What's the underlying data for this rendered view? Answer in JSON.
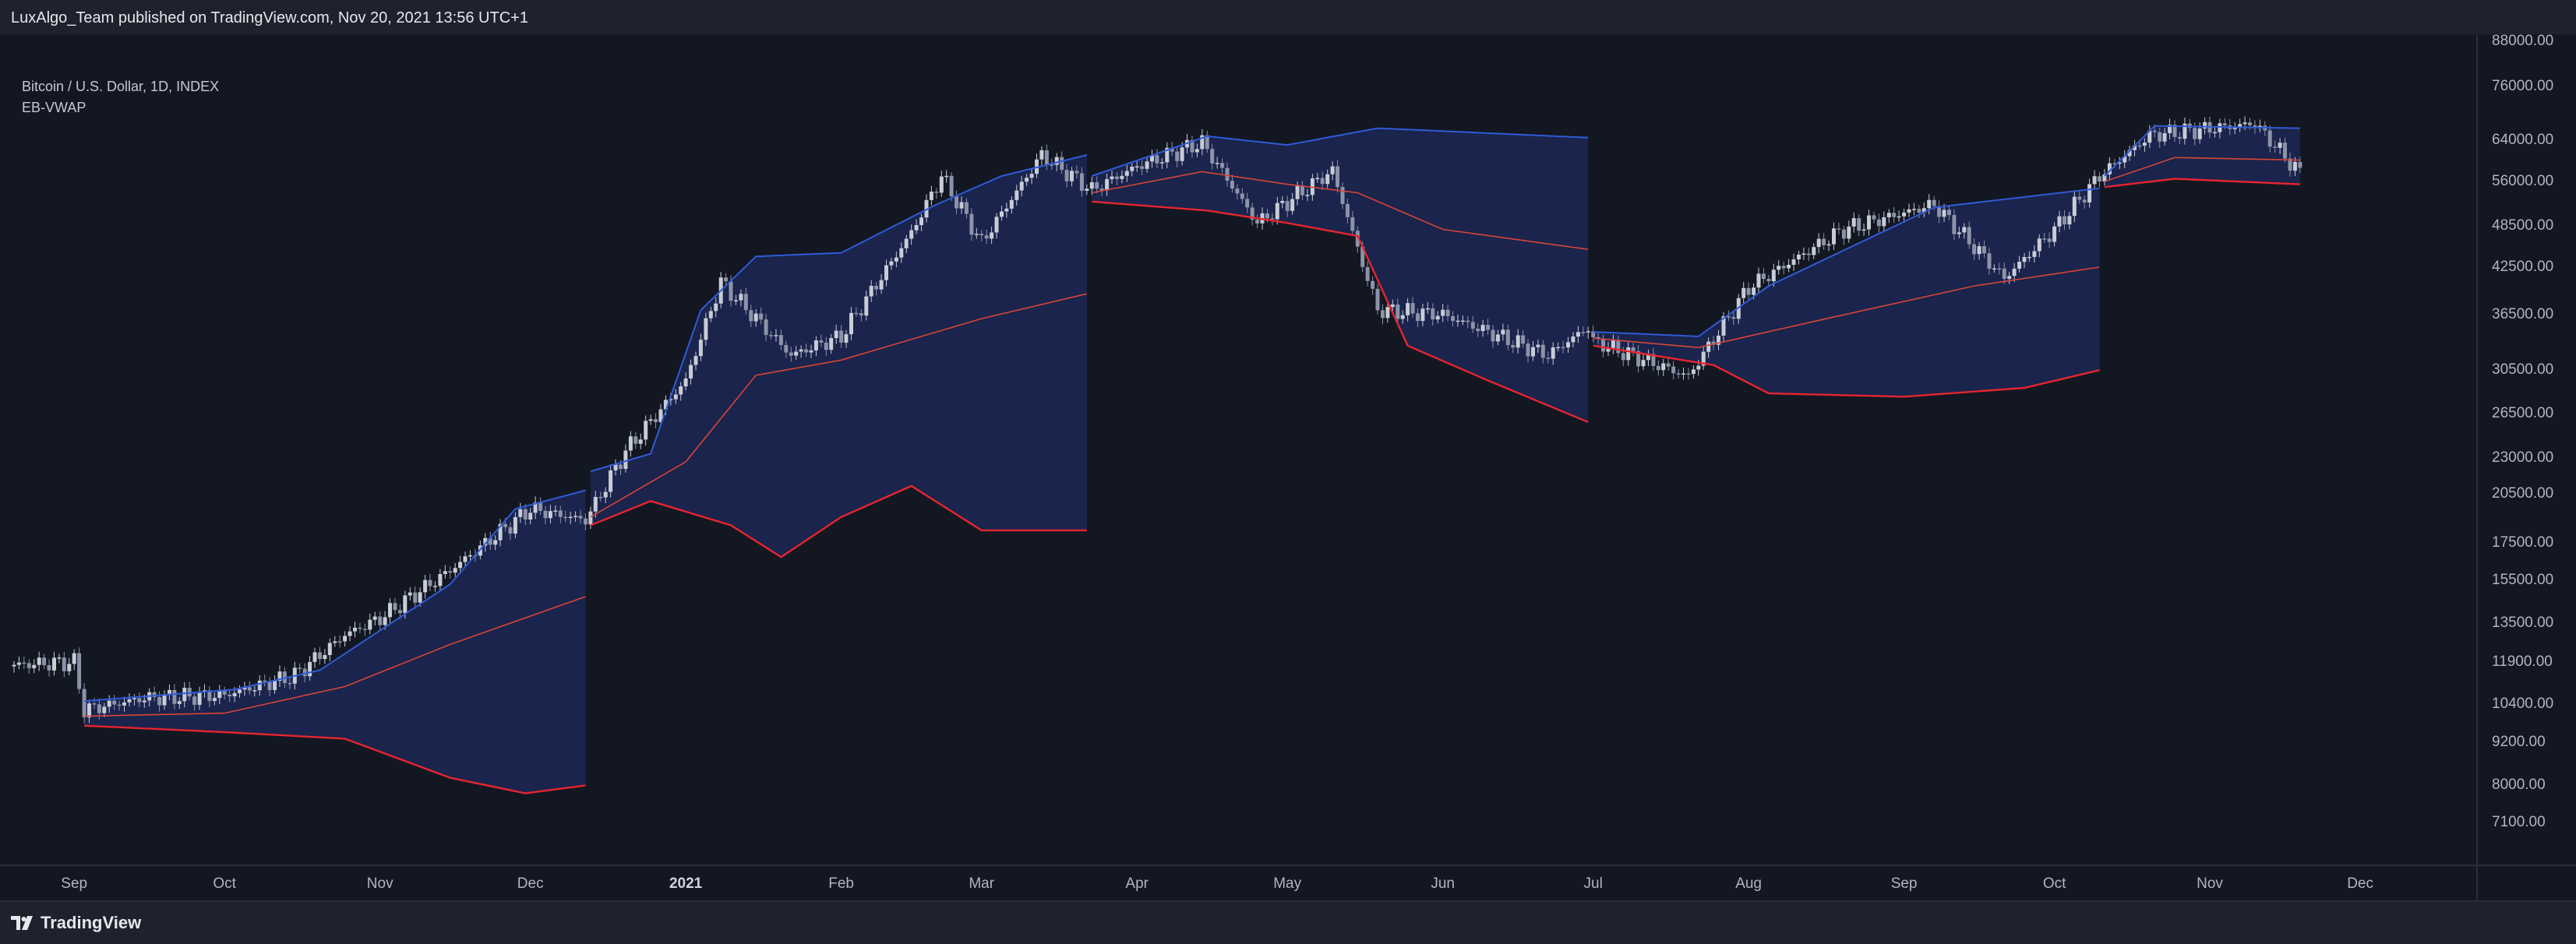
{
  "header": {
    "publish_text": "LuxAlgo_Team published on TradingView.com, Nov 20, 2021 13:56 UTC+1"
  },
  "legend": {
    "symbol": "Bitcoin / U.S. Dollar, 1D, INDEX",
    "indicator": "EB-VWAP"
  },
  "footer": {
    "brand": "TradingView",
    "logo_icon": "tradingview-logo-icon"
  },
  "colors": {
    "background": "#131722",
    "band_fill": "#1b2650",
    "upper_band": "#2f5bd6",
    "lower_band": "#e5252f",
    "vwap": "#d84438",
    "candle_up": "#c8ccd6",
    "candle_down": "#8c93a8"
  },
  "chart_data": {
    "type": "line",
    "title": "Bitcoin / U.S. Dollar, 1D, INDEX",
    "xlabel": "",
    "ylabel": "",
    "y_scale": "log",
    "ylim": [
      6200,
      90000
    ],
    "y_ticks": [
      "88000.00",
      "76000.00",
      "64000.00",
      "56000.00",
      "48500.00",
      "42500.00",
      "36500.00",
      "30500.00",
      "26500.00",
      "23000.00",
      "20500.00",
      "17500.00",
      "15500.00",
      "13500.00",
      "11900.00",
      "10400.00",
      "9200.00",
      "8000.00",
      "7100.00"
    ],
    "x_ticks": [
      {
        "label": "Sep",
        "date": "2020-09-01",
        "bold": false
      },
      {
        "label": "Oct",
        "date": "2020-10-01",
        "bold": false
      },
      {
        "label": "Nov",
        "date": "2020-11-01",
        "bold": false
      },
      {
        "label": "Dec",
        "date": "2020-12-01",
        "bold": false
      },
      {
        "label": "2021",
        "date": "2021-01-01",
        "bold": true
      },
      {
        "label": "Feb",
        "date": "2021-02-01",
        "bold": false
      },
      {
        "label": "Mar",
        "date": "2021-03-01",
        "bold": false
      },
      {
        "label": "Apr",
        "date": "2021-04-01",
        "bold": false
      },
      {
        "label": "May",
        "date": "2021-05-01",
        "bold": false
      },
      {
        "label": "Jun",
        "date": "2021-06-01",
        "bold": false
      },
      {
        "label": "Jul",
        "date": "2021-07-01",
        "bold": false
      },
      {
        "label": "Aug",
        "date": "2021-08-01",
        "bold": false
      },
      {
        "label": "Sep",
        "date": "2021-09-01",
        "bold": false
      },
      {
        "label": "Oct",
        "date": "2021-10-01",
        "bold": false
      },
      {
        "label": "Nov",
        "date": "2021-11-01",
        "bold": false
      },
      {
        "label": "Dec",
        "date": "2021-12-01",
        "bold": false
      }
    ],
    "price": [
      {
        "date": "2020-08-20",
        "close": 11800
      },
      {
        "date": "2020-09-01",
        "close": 11900
      },
      {
        "date": "2020-09-03",
        "close": 10200
      },
      {
        "date": "2020-09-15",
        "close": 10600
      },
      {
        "date": "2020-10-01",
        "close": 10700
      },
      {
        "date": "2020-10-15",
        "close": 11400
      },
      {
        "date": "2020-10-25",
        "close": 13000
      },
      {
        "date": "2020-11-01",
        "close": 13700
      },
      {
        "date": "2020-11-15",
        "close": 16000
      },
      {
        "date": "2020-12-01",
        "close": 19500
      },
      {
        "date": "2020-12-12",
        "close": 18800
      },
      {
        "date": "2020-12-20",
        "close": 23500
      },
      {
        "date": "2021-01-01",
        "close": 29500
      },
      {
        "date": "2021-01-08",
        "close": 40500
      },
      {
        "date": "2021-01-22",
        "close": 32000
      },
      {
        "date": "2021-02-01",
        "close": 34000
      },
      {
        "date": "2021-02-15",
        "close": 47500
      },
      {
        "date": "2021-02-21",
        "close": 57000
      },
      {
        "date": "2021-03-01",
        "close": 46000
      },
      {
        "date": "2021-03-13",
        "close": 61000
      },
      {
        "date": "2021-03-23",
        "close": 54500
      },
      {
        "date": "2021-04-01",
        "close": 58800
      },
      {
        "date": "2021-04-14",
        "close": 63500
      },
      {
        "date": "2021-04-25",
        "close": 49000
      },
      {
        "date": "2021-05-10",
        "close": 58000
      },
      {
        "date": "2021-05-19",
        "close": 37000
      },
      {
        "date": "2021-06-01",
        "close": 36500
      },
      {
        "date": "2021-06-22",
        "close": 32000
      },
      {
        "date": "2021-06-30",
        "close": 35000
      },
      {
        "date": "2021-07-01",
        "close": 33500
      },
      {
        "date": "2021-07-20",
        "close": 29900
      },
      {
        "date": "2021-08-01",
        "close": 39800
      },
      {
        "date": "2021-08-20",
        "close": 48000
      },
      {
        "date": "2021-09-07",
        "close": 52000
      },
      {
        "date": "2021-09-21",
        "close": 41000
      },
      {
        "date": "2021-10-01",
        "close": 48000
      },
      {
        "date": "2021-10-10",
        "close": 57000
      },
      {
        "date": "2021-10-20",
        "close": 65000
      },
      {
        "date": "2021-11-10",
        "close": 67500
      },
      {
        "date": "2021-11-19",
        "close": 57500
      }
    ],
    "series": [
      {
        "name": "upper",
        "segments": [
          [
            [
              "2020-09-03",
              10500
            ],
            [
              "2020-10-03",
              10900
            ],
            [
              "2020-10-20",
              11600
            ],
            [
              "2020-11-15",
              15300
            ],
            [
              "2020-11-28",
              19500
            ],
            [
              "2020-12-12",
              20700
            ]
          ],
          [
            [
              "2020-12-13",
              22000
            ],
            [
              "2020-12-25",
              23300
            ],
            [
              "2021-01-04",
              37000
            ],
            [
              "2021-01-15",
              44000
            ],
            [
              "2021-02-01",
              44500
            ],
            [
              "2021-02-20",
              52000
            ],
            [
              "2021-03-05",
              57000
            ],
            [
              "2021-03-22",
              61000
            ]
          ],
          [
            [
              "2021-03-23",
              57000
            ],
            [
              "2021-04-15",
              64800
            ],
            [
              "2021-05-01",
              63000
            ],
            [
              "2021-05-19",
              66500
            ],
            [
              "2021-06-30",
              64500
            ]
          ],
          [
            [
              "2021-07-01",
              34500
            ],
            [
              "2021-07-22",
              34000
            ],
            [
              "2021-08-05",
              40000
            ],
            [
              "2021-09-07",
              51500
            ],
            [
              "2021-10-10",
              54800
            ]
          ],
          [
            [
              "2021-10-11",
              57000
            ],
            [
              "2021-10-21",
              67000
            ],
            [
              "2021-11-19",
              66500
            ]
          ]
        ]
      },
      {
        "name": "vwap",
        "segments": [
          [
            [
              "2020-09-03",
              10000
            ],
            [
              "2020-10-01",
              10100
            ],
            [
              "2020-10-25",
              11000
            ],
            [
              "2020-11-15",
              12600
            ],
            [
              "2020-12-12",
              14700
            ]
          ],
          [
            [
              "2020-12-13",
              19000
            ],
            [
              "2021-01-01",
              22700
            ],
            [
              "2021-01-15",
              30000
            ],
            [
              "2021-02-01",
              31500
            ],
            [
              "2021-03-01",
              36000
            ],
            [
              "2021-03-22",
              39000
            ]
          ],
          [
            [
              "2021-03-23",
              54000
            ],
            [
              "2021-04-14",
              57800
            ],
            [
              "2021-05-01",
              55500
            ],
            [
              "2021-05-15",
              54000
            ],
            [
              "2021-06-01",
              48000
            ],
            [
              "2021-06-30",
              45000
            ]
          ],
          [
            [
              "2021-07-01",
              33800
            ],
            [
              "2021-07-22",
              32800
            ],
            [
              "2021-08-15",
              35800
            ],
            [
              "2021-09-15",
              40000
            ],
            [
              "2021-10-10",
              42500
            ]
          ],
          [
            [
              "2021-10-11",
              56000
            ],
            [
              "2021-10-25",
              60500
            ],
            [
              "2021-11-19",
              60000
            ]
          ]
        ]
      },
      {
        "name": "lower",
        "segments": [
          [
            [
              "2020-09-03",
              9700
            ],
            [
              "2020-10-01",
              9500
            ],
            [
              "2020-10-25",
              9300
            ],
            [
              "2020-11-15",
              8200
            ],
            [
              "2020-11-30",
              7800
            ],
            [
              "2020-12-12",
              8000
            ]
          ],
          [
            [
              "2020-12-13",
              18500
            ],
            [
              "2020-12-25",
              20000
            ],
            [
              "2021-01-10",
              18500
            ],
            [
              "2021-01-20",
              16700
            ],
            [
              "2021-02-01",
              19000
            ],
            [
              "2021-02-15",
              21000
            ],
            [
              "2021-03-01",
              18200
            ],
            [
              "2021-03-22",
              18200
            ]
          ],
          [
            [
              "2021-03-23",
              52500
            ],
            [
              "2021-04-15",
              51000
            ],
            [
              "2021-05-01",
              49000
            ],
            [
              "2021-05-15",
              47000
            ],
            [
              "2021-05-25",
              33000
            ],
            [
              "2021-06-10",
              29500
            ],
            [
              "2021-06-30",
              25800
            ]
          ],
          [
            [
              "2021-07-01",
              33000
            ],
            [
              "2021-07-25",
              31000
            ],
            [
              "2021-08-05",
              28300
            ],
            [
              "2021-09-01",
              28000
            ],
            [
              "2021-09-25",
              28800
            ],
            [
              "2021-10-10",
              30500
            ]
          ],
          [
            [
              "2021-10-11",
              55000
            ],
            [
              "2021-10-25",
              56500
            ],
            [
              "2021-11-19",
              55500
            ]
          ]
        ]
      }
    ]
  }
}
